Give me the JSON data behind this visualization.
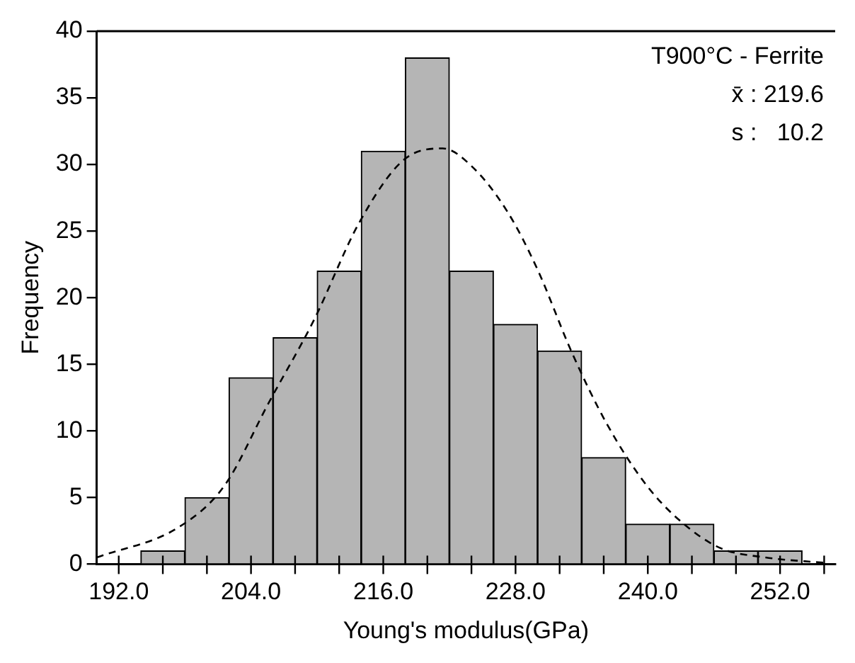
{
  "chart_data": {
    "type": "histogram",
    "xlabel": "Young's modulus(GPa)",
    "ylabel": "Frequency",
    "bins": [
      194,
      198,
      202,
      206,
      210,
      214,
      218,
      222,
      226,
      230,
      234,
      238,
      242,
      246,
      250,
      254
    ],
    "values": [
      1,
      5,
      14,
      17,
      22,
      31,
      38,
      22,
      18,
      16,
      8,
      3,
      3,
      1,
      1
    ],
    "color": "#b5b5b5",
    "series": [
      {
        "type": "line",
        "color": "#000000",
        "line_style": "dashed",
        "marker": "none",
        "x": [
          190,
          197.5,
          201.6,
          205.6,
          209.7,
          213.8,
          217.8,
          221.4,
          224.1,
          227.3,
          230,
          233.1,
          236.3,
          239.9,
          243,
          246.6,
          250.7,
          256
        ],
        "values": [
          0.5,
          2.8,
          5.9,
          12.1,
          18.3,
          25.6,
          30.3,
          31.2,
          29.8,
          26.4,
          22.1,
          15.9,
          10.5,
          5.9,
          3.2,
          1.2,
          0.5,
          0.1
        ]
      }
    ],
    "xlim": [
      190,
      257
    ],
    "xticks": [
      {
        "value": 192,
        "label": "192.0"
      },
      {
        "value": 196,
        "label": null
      },
      {
        "value": 200,
        "label": null
      },
      {
        "value": 204,
        "label": "204.0"
      },
      {
        "value": 208,
        "label": null
      },
      {
        "value": 212,
        "label": null
      },
      {
        "value": 216,
        "label": "216.0"
      },
      {
        "value": 220,
        "label": null
      },
      {
        "value": 224,
        "label": null
      },
      {
        "value": 228,
        "label": "228.0"
      },
      {
        "value": 232,
        "label": null
      },
      {
        "value": 236,
        "label": null
      },
      {
        "value": 240,
        "label": "240.0"
      },
      {
        "value": 244,
        "label": null
      },
      {
        "value": 248,
        "label": null
      },
      {
        "value": 252,
        "label": "252.0"
      },
      {
        "value": 256,
        "label": null
      }
    ],
    "ylim": [
      0,
      40
    ],
    "yticks": [
      0,
      5,
      10,
      15,
      20,
      25,
      30,
      35,
      40
    ],
    "grid": false,
    "legend": false,
    "annotations": [
      "T900°C - Ferrite",
      "x̄ : 219.6",
      "s :   10.2"
    ]
  }
}
